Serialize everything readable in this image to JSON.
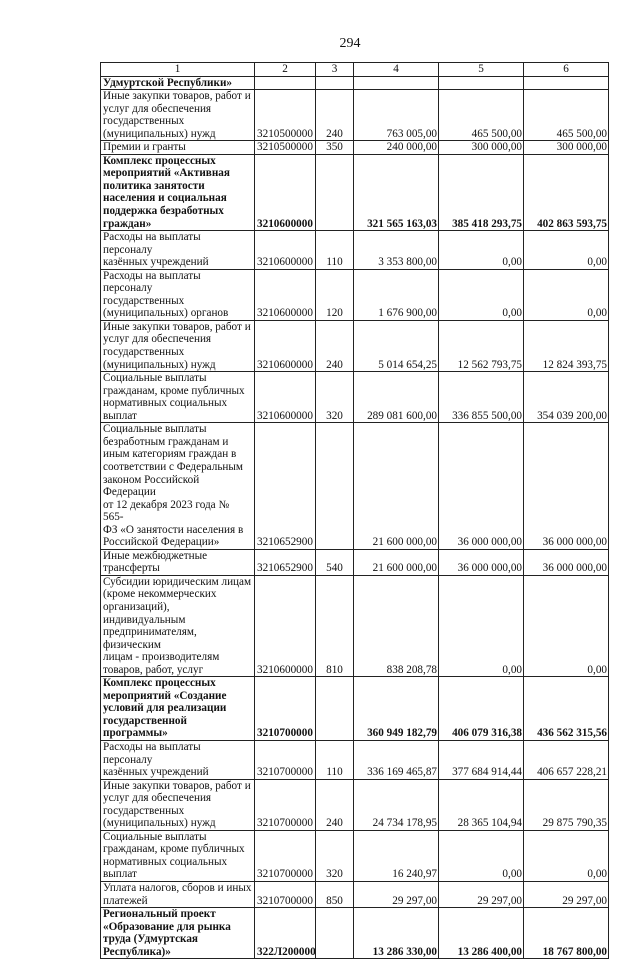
{
  "page_number": "294",
  "table": {
    "header": [
      "1",
      "2",
      "3",
      "4",
      "5",
      "6"
    ],
    "rows": [
      {
        "bold": true,
        "name": "Удмуртской Республики»",
        "csr": "",
        "vr": "",
        "v2024": "",
        "v2025": "",
        "v2026": ""
      },
      {
        "bold": false,
        "name": "Иные закупки товаров, работ и\nуслуг для обеспечения\nгосударственных\n(муниципальных) нужд",
        "csr": "3210500000",
        "vr": "240",
        "v2024": "763 005,00",
        "v2025": "465 500,00",
        "v2026": "465 500,00"
      },
      {
        "bold": false,
        "name": "Премии и гранты",
        "csr": "3210500000",
        "vr": "350",
        "v2024": "240 000,00",
        "v2025": "300 000,00",
        "v2026": "300 000,00"
      },
      {
        "bold": true,
        "name": "Комплекс процессных\nмероприятий «Активная\nполитика занятости\nнаселения и социальная\nподдержка безработных\nграждан»",
        "csr": "3210600000",
        "vr": "",
        "v2024": "321 565 163,03",
        "v2025": "385 418 293,75",
        "v2026": "402 863 593,75"
      },
      {
        "bold": false,
        "name": "Расходы на выплаты персоналу\nказённых учреждений",
        "csr": "3210600000",
        "vr": "110",
        "v2024": "3 353 800,00",
        "v2025": "0,00",
        "v2026": "0,00"
      },
      {
        "bold": false,
        "name": "Расходы на выплаты персоналу\nгосударственных\n(муниципальных) органов",
        "csr": "3210600000",
        "vr": "120",
        "v2024": "1 676 900,00",
        "v2025": "0,00",
        "v2026": "0,00"
      },
      {
        "bold": false,
        "name": "Иные закупки товаров, работ и\nуслуг для обеспечения\nгосударственных\n(муниципальных) нужд",
        "csr": "3210600000",
        "vr": "240",
        "v2024": "5 014 654,25",
        "v2025": "12 562 793,75",
        "v2026": "12 824 393,75"
      },
      {
        "bold": false,
        "name": "Социальные выплаты\nгражданам, кроме публичных\nнормативных социальных\nвыплат",
        "csr": "3210600000",
        "vr": "320",
        "v2024": "289 081 600,00",
        "v2025": "336 855 500,00",
        "v2026": "354 039 200,00"
      },
      {
        "bold": false,
        "name": "Социальные выплаты\nбезработным гражданам и\nиным категориям граждан в\nсоответствии с Федеральным\nзаконом Российской Федерации\nот 12 декабря 2023 года № 565-\nФЗ «О занятости населения в\nРоссийской Федерации»",
        "csr": "3210652900",
        "vr": "",
        "v2024": "21 600 000,00",
        "v2025": "36 000 000,00",
        "v2026": "36 000 000,00"
      },
      {
        "bold": false,
        "name": "Иные межбюджетные\nтрансферты",
        "csr": "3210652900",
        "vr": "540",
        "v2024": "21 600 000,00",
        "v2025": "36 000 000,00",
        "v2026": "36 000 000,00"
      },
      {
        "bold": false,
        "name": "Субсидии юридическим лицам\n(кроме некоммерческих\nорганизаций), индивидуальным\nпредпринимателям, физическим\nлицам - производителям\nтоваров, работ, услуг",
        "csr": "3210600000",
        "vr": "810",
        "v2024": "838 208,78",
        "v2025": "0,00",
        "v2026": "0,00"
      },
      {
        "bold": true,
        "name": "Комплекс процессных\nмероприятий «Создание\nусловий для реализации\nгосударственной программы»",
        "csr": "3210700000",
        "vr": "",
        "v2024": "360 949 182,79",
        "v2025": "406 079 316,38",
        "v2026": "436 562 315,56"
      },
      {
        "bold": false,
        "name": "Расходы на выплаты персоналу\nказённых учреждений",
        "csr": "3210700000",
        "vr": "110",
        "v2024": "336 169 465,87",
        "v2025": "377 684 914,44",
        "v2026": "406 657 228,21"
      },
      {
        "bold": false,
        "name": "Иные закупки товаров, работ и\nуслуг для обеспечения\nгосударственных\n(муниципальных) нужд",
        "csr": "3210700000",
        "vr": "240",
        "v2024": "24 734 178,95",
        "v2025": "28 365 104,94",
        "v2026": "29 875 790,35"
      },
      {
        "bold": false,
        "name": "Социальные выплаты\nгражданам, кроме публичных\nнормативных социальных\nвыплат",
        "csr": "3210700000",
        "vr": "320",
        "v2024": "16 240,97",
        "v2025": "0,00",
        "v2026": "0,00"
      },
      {
        "bold": false,
        "name": "Уплата налогов, сборов и иных\nплатежей",
        "csr": "3210700000",
        "vr": "850",
        "v2024": "29 297,00",
        "v2025": "29 297,00",
        "v2026": "29 297,00"
      },
      {
        "bold": true,
        "name": "Региональный проект\n«Образование для рынка\nтруда (Удмуртская\nРеспублика)»",
        "csr": "322Л200000",
        "vr": "",
        "v2024": "13 286 330,00",
        "v2025": "13 286 400,00",
        "v2026": "18 767 800,00"
      }
    ]
  }
}
